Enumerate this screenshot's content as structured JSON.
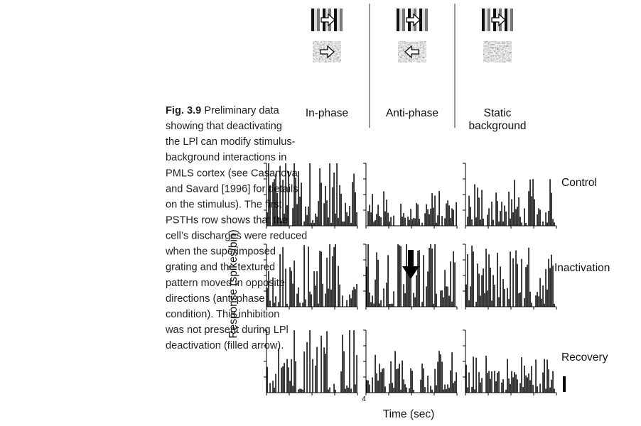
{
  "caption": {
    "label": "Fig. 3.9",
    "lines": [
      "Preliminary data",
      "showing that deactivating",
      "the LPl can modify stimulus-",
      "background interactions in",
      "PMLS cortex (see Casanova",
      "and Savard [1996] for details",
      "on the stimulus). The first",
      "PSTHs row shows that the",
      "cell’s discharges were reduced",
      "when the superimposed",
      "grating and the textured",
      "pattern moved in opposite",
      "directions (anti-phase",
      "condition). This inhibition",
      "was not present during LPl",
      "deactivation (filled arrow)."
    ]
  },
  "figure": {
    "conditions": [
      "In-phase",
      "Anti-phase",
      "Static background"
    ],
    "rows": [
      "Control",
      "Inactivation",
      "Recovery"
    ],
    "y_axis_label": "Response (spikes/bin)",
    "x_axis_label": "Time (sec)",
    "x_tick_label": "4"
  }
}
